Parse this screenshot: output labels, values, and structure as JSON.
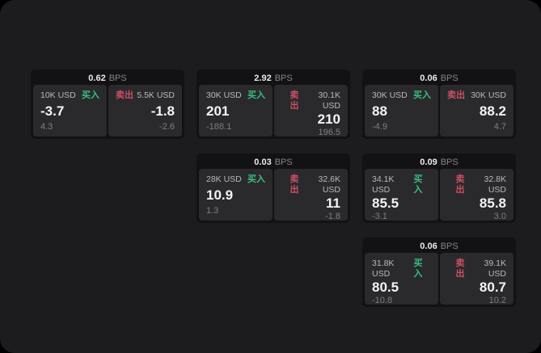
{
  "page": {
    "backdrop_color": "#000000",
    "window_color": "#1c1c1e"
  },
  "labels": {
    "buy": "买入",
    "sell": "卖出",
    "bps_unit": "BPS"
  },
  "colors": {
    "buy_green": "#3cbe7c",
    "sell_red": "#cd4f63",
    "card_bg": "#121214",
    "panel_bg": "#2a2a2d"
  },
  "cards": [
    {
      "bps": "0.62",
      "buy": {
        "amount": "10K USD",
        "price": "-3.7",
        "delta": "4.3"
      },
      "sell": {
        "amount": "5.5K USD",
        "price": "-1.8",
        "delta": "-2.6"
      }
    },
    {
      "bps": "2.92",
      "buy": {
        "amount": "30K USD",
        "price": "201",
        "delta": "-188.1"
      },
      "sell": {
        "amount": "30.1K USD",
        "price": "210",
        "delta": "196.5"
      }
    },
    {
      "bps": "0.06",
      "buy": {
        "amount": "30K USD",
        "price": "88",
        "delta": "-4.9"
      },
      "sell": {
        "amount": "30K USD",
        "price": "88.2",
        "delta": "4.7"
      }
    },
    {
      "bps": "0.03",
      "buy": {
        "amount": "28K USD",
        "price": "10.9",
        "delta": "1.3"
      },
      "sell": {
        "amount": "32.6K USD",
        "price": "11",
        "delta": "-1.8"
      }
    },
    {
      "bps": "0.09",
      "buy": {
        "amount": "34.1K USD",
        "price": "85.5",
        "delta": "-3.1"
      },
      "sell": {
        "amount": "32.8K USD",
        "price": "85.8",
        "delta": "3.0"
      }
    },
    {
      "bps": "0.06",
      "buy": {
        "amount": "31.8K USD",
        "price": "80.5",
        "delta": "-10.8"
      },
      "sell": {
        "amount": "39.1K USD",
        "price": "80.7",
        "delta": "10.2"
      }
    }
  ]
}
